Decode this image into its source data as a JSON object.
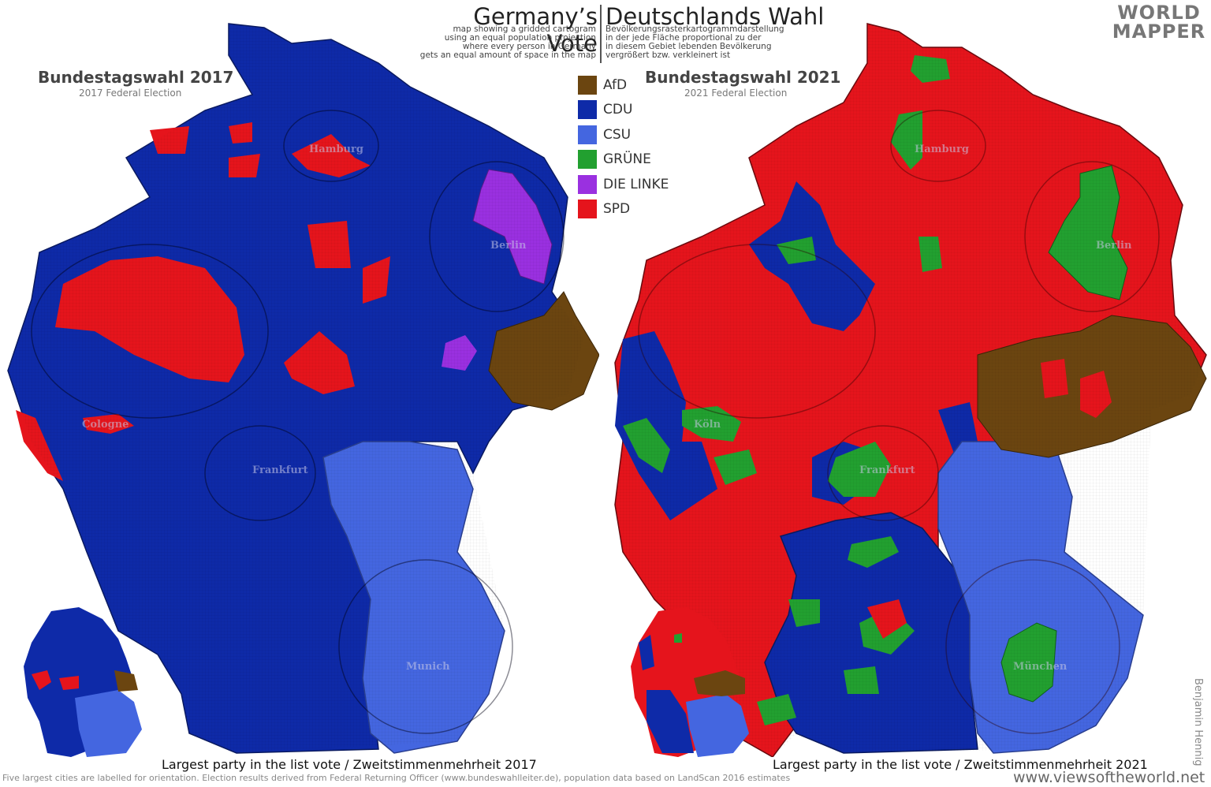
{
  "header": {
    "title_en": "Germany’s Vote",
    "title_de": "Deutschlands Wahl",
    "desc_en": [
      "map showing a gridded cartogram",
      "using an equal population projection",
      "where every person in Germany",
      "gets an equal amount of space in the map"
    ],
    "desc_de": [
      "Bevölkerungsrasterkartogrammdarstellung",
      "in der jede Fläche proportional zu der",
      "in diesem Gebiet lebenden Bevölkerung",
      "vergrößert bzw. verkleinert ist"
    ],
    "logo_top": "WORLD",
    "logo_bottom": "MAPPER"
  },
  "maps": [
    {
      "title": "Bundestagswahl 2017",
      "subtitle": "2017 Federal Election",
      "caption": "Largest party in the list vote / Zweitstimmenmehrheit 2017",
      "cities": [
        "Hamburg",
        "Berlin",
        "Cologne",
        "Frankfurt",
        "Munich"
      ]
    },
    {
      "title": "Bundestagswahl 2021",
      "subtitle": "2021 Federal Election",
      "caption": "Largest party in the list vote / Zweitstimmenmehrheit 2021",
      "cities": [
        "Hamburg",
        "Berlin",
        "Köln",
        "Frankfurt",
        "München"
      ]
    }
  ],
  "legend": [
    {
      "party": "AfD",
      "color": "#6b4510"
    },
    {
      "party": "CDU",
      "color": "#0e2aa8"
    },
    {
      "party": "CSU",
      "color": "#4466e0"
    },
    {
      "party": "GRÜNE",
      "color": "#22a030"
    },
    {
      "party": "DIE LINKE",
      "color": "#9a30e0"
    },
    {
      "party": "SPD",
      "color": "#e5141c"
    }
  ],
  "footer": {
    "note": "Five largest cities are labelled for orientation. Election results derived from Federal Returning Officer (www.bundeswahlleiter.de), population data based on LandScan 2016 estimates",
    "website": "www.viewsoftheworld.net",
    "credit": "Benjamin Hennig"
  }
}
